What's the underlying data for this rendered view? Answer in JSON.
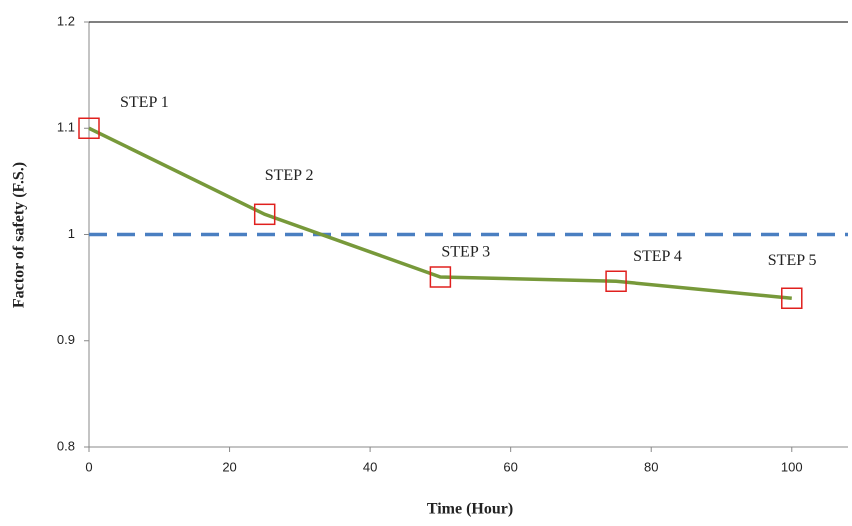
{
  "chart_data": {
    "type": "line",
    "x_label": "Time (Hour)",
    "y_label": "Factor of safety (F.S.)",
    "x": [
      0,
      25,
      50,
      75,
      100
    ],
    "series": [
      {
        "color": "#77993a",
        "marker_color": "#e0201e",
        "values": [
          1.1,
          1.019,
          0.96,
          0.956,
          0.94
        ]
      }
    ],
    "point_labels": [
      "STEP 1",
      "STEP 2",
      "STEP 3",
      "STEP 4",
      "STEP 5"
    ],
    "reference_line": {
      "value": 1,
      "color": "#4a7fc1",
      "dashed": true
    },
    "xlim": [
      0,
      108
    ],
    "xticks": [
      0,
      20,
      40,
      60,
      80,
      100
    ],
    "ylim": [
      0.8,
      1.2
    ],
    "yticks": [
      0.8,
      0.9,
      1,
      1.1,
      1.2
    ]
  }
}
